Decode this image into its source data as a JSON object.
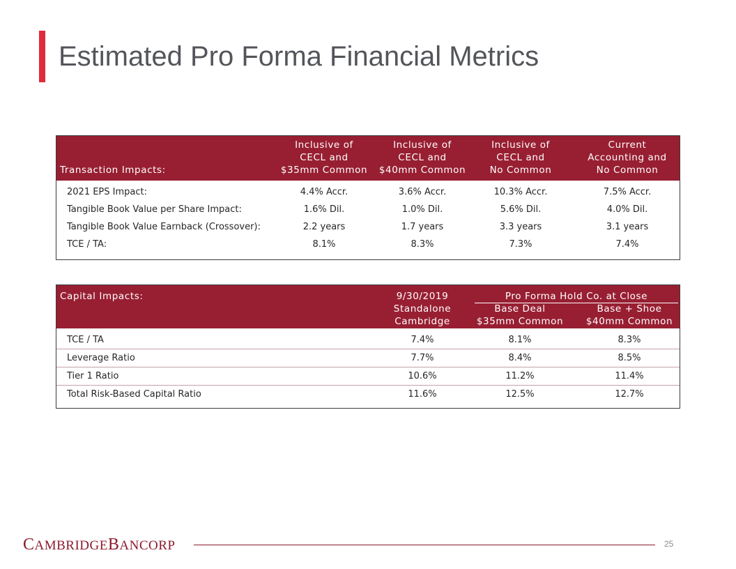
{
  "slide": {
    "title": "Estimated Pro Forma Financial Metrics",
    "page_number": "25",
    "accent_color": "#e02b3a",
    "header_color": "#981f32"
  },
  "transaction": {
    "section_label": "Transaction Impacts:",
    "columns": [
      [
        "Inclusive of",
        "CECL and",
        "$35mm Common"
      ],
      [
        "Inclusive of",
        "CECL and",
        "$40mm Common"
      ],
      [
        "Inclusive of",
        "CECL and",
        "No Common"
      ],
      [
        "Current",
        "Accounting and",
        "No Common"
      ]
    ],
    "rows": [
      {
        "label": "2021 EPS Impact:",
        "values": [
          "4.4% Accr.",
          "3.6% Accr.",
          "10.3% Accr.",
          "7.5% Accr."
        ]
      },
      {
        "label": "Tangible Book Value per Share Impact:",
        "values": [
          "1.6% Dil.",
          "1.0% Dil.",
          "5.6% Dil.",
          "4.0% Dil."
        ]
      },
      {
        "label": "Tangible Book Value Earnback (Crossover):",
        "values": [
          "2.2 years",
          "1.7 years",
          "3.3 years",
          "3.1 years"
        ]
      },
      {
        "label": "TCE / TA:",
        "values": [
          "8.1%",
          "8.3%",
          "7.3%",
          "7.4%"
        ]
      }
    ]
  },
  "capital": {
    "section_label": "Capital Impacts:",
    "group_header": "Pro Forma Hold Co. at Close",
    "columns": [
      [
        "9/30/2019",
        "Standalone",
        "Cambridge"
      ],
      [
        "Base Deal",
        "$35mm Common"
      ],
      [
        "Base + Shoe",
        "$40mm Common"
      ]
    ],
    "rows": [
      {
        "label": "TCE / TA",
        "values": [
          "7.4%",
          "8.1%",
          "8.3%"
        ]
      },
      {
        "label": "Leverage Ratio",
        "values": [
          "7.7%",
          "8.4%",
          "8.5%"
        ]
      },
      {
        "label": "Tier 1 Ratio",
        "values": [
          "10.6%",
          "11.2%",
          "11.4%"
        ]
      },
      {
        "label": "Total Risk-Based Capital Ratio",
        "values": [
          "11.6%",
          "12.5%",
          "12.7%"
        ]
      }
    ]
  },
  "footer": {
    "logo_big_1": "C",
    "logo_small_1": "AMBRIDGE",
    "logo_big_2": "B",
    "logo_small_2": "ANCORP"
  }
}
